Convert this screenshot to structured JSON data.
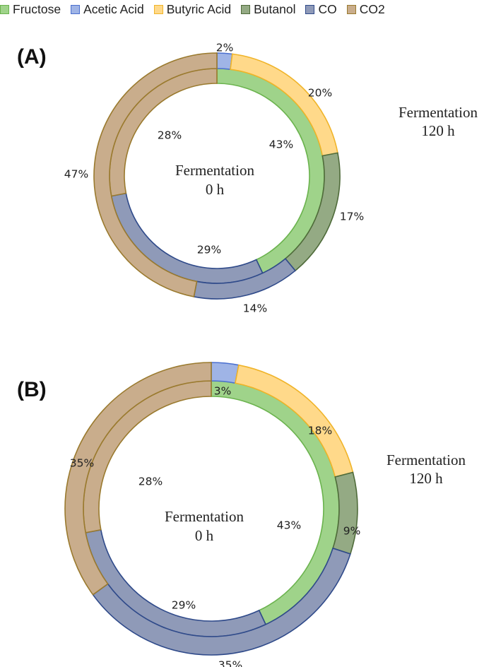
{
  "legend": [
    {
      "name": "Fructose",
      "color": "#9fd38a",
      "stroke": "#6bb34e"
    },
    {
      "name": "Acetic Acid",
      "color": "#9fb4e6",
      "stroke": "#4a6fcf"
    },
    {
      "name": "Butyric Acid",
      "color": "#ffd98a",
      "stroke": "#f0b429"
    },
    {
      "name": "Butanol",
      "color": "#94aa84",
      "stroke": "#4f6b3a"
    },
    {
      "name": "CO",
      "color": "#8f9ab8",
      "stroke": "#2f4a8a"
    },
    {
      "name": "CO2",
      "color": "#c9ad8c",
      "stroke": "#9a7a2e"
    }
  ],
  "chart_data": [
    {
      "type": "donut",
      "panel_label": "(A)",
      "inner_label": [
        "Fermentation",
        "0 h"
      ],
      "outer_label": [
        "Fermentation",
        "120 h"
      ],
      "rings": [
        {
          "name": "Fermentation 0 h",
          "segments": [
            {
              "name": "Fructose",
              "value": 43,
              "label": "43%"
            },
            {
              "name": "CO",
              "value": 29,
              "label": "29%"
            },
            {
              "name": "CO2",
              "value": 28,
              "label": "28%"
            }
          ]
        },
        {
          "name": "Fermentation 120 h",
          "segments": [
            {
              "name": "Acetic Acid",
              "value": 2,
              "label": "2%"
            },
            {
              "name": "Butyric Acid",
              "value": 20,
              "label": "20%"
            },
            {
              "name": "Butanol",
              "value": 17,
              "label": "17%"
            },
            {
              "name": "CO",
              "value": 14,
              "label": "14%"
            },
            {
              "name": "CO2",
              "value": 47,
              "label": "47%"
            }
          ]
        }
      ]
    },
    {
      "type": "donut",
      "panel_label": "(B)",
      "inner_label": [
        "Fermentation",
        "0 h"
      ],
      "outer_label": [
        "Fermentation",
        "120 h"
      ],
      "rings": [
        {
          "name": "Fermentation 0 h",
          "segments": [
            {
              "name": "Fructose",
              "value": 43,
              "label": "43%"
            },
            {
              "name": "CO",
              "value": 29,
              "label": "29%"
            },
            {
              "name": "CO2",
              "value": 28,
              "label": "28%"
            }
          ]
        },
        {
          "name": "Fermentation 120 h",
          "segments": [
            {
              "name": "Acetic Acid",
              "value": 3,
              "label": "3%"
            },
            {
              "name": "Butyric Acid",
              "value": 18,
              "label": "18%"
            },
            {
              "name": "Butanol",
              "value": 9,
              "label": "9%"
            },
            {
              "name": "CO",
              "value": 35,
              "label": "35%"
            },
            {
              "name": "CO2",
              "value": 35,
              "label": "35%"
            }
          ]
        }
      ]
    }
  ]
}
